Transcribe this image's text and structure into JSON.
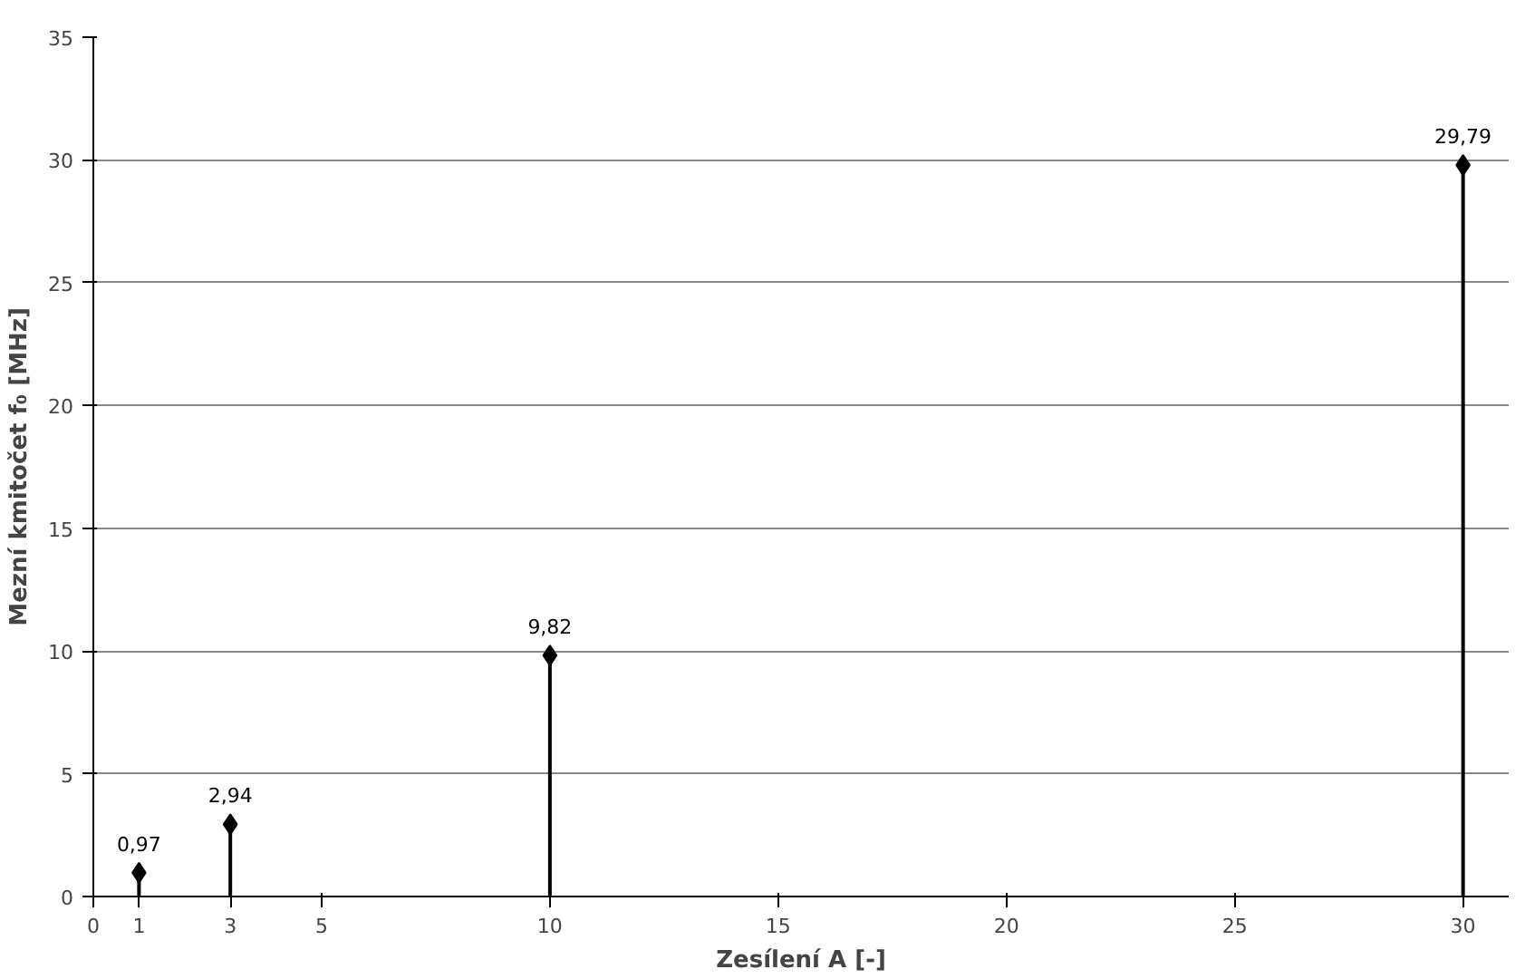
{
  "chart_data": {
    "type": "lollipop",
    "xlabel": "Zesílení A [-]",
    "ylabel": "Mezní kmitočet f₀ [MHz]",
    "x": [
      1,
      3,
      10,
      30
    ],
    "series": [
      {
        "color": "#000000",
        "values": [
          0.97,
          2.94,
          9.82,
          29.79
        ],
        "value_labels": [
          "0,97",
          "2,94",
          "9,82",
          "29,79"
        ]
      }
    ],
    "xlim": [
      0,
      31
    ],
    "xticks": [
      0,
      1,
      3,
      5,
      10,
      15,
      20,
      25,
      30
    ],
    "ylim": [
      0,
      35
    ],
    "yticks": [
      0,
      5,
      10,
      15,
      20,
      25,
      30,
      35
    ],
    "grid": "y",
    "marker": "diamond"
  }
}
